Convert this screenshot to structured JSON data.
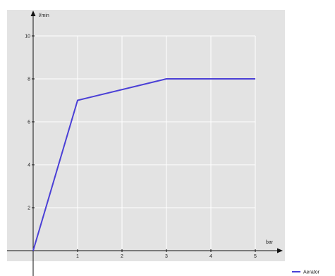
{
  "chart_data": {
    "type": "line",
    "title": "",
    "xlabel": "bar",
    "ylabel": "l/min",
    "xlim": [
      0,
      5
    ],
    "ylim": [
      0,
      10
    ],
    "x_ticks": [
      1,
      2,
      3,
      4,
      5
    ],
    "x_tick_labels": [
      "1",
      "2",
      "3",
      "4",
      "5"
    ],
    "y_ticks": [
      2,
      4,
      6,
      8,
      10
    ],
    "y_tick_labels": [
      "2",
      "4",
      "6",
      "8",
      "10"
    ],
    "grid": true,
    "legend_position": "bottom-right",
    "plot_background": "#e3e3e3",
    "series": [
      {
        "name": "Aerator",
        "color": "#4a3fd6",
        "x": [
          0,
          1,
          3,
          5
        ],
        "y": [
          0,
          7,
          8,
          8
        ]
      }
    ]
  }
}
